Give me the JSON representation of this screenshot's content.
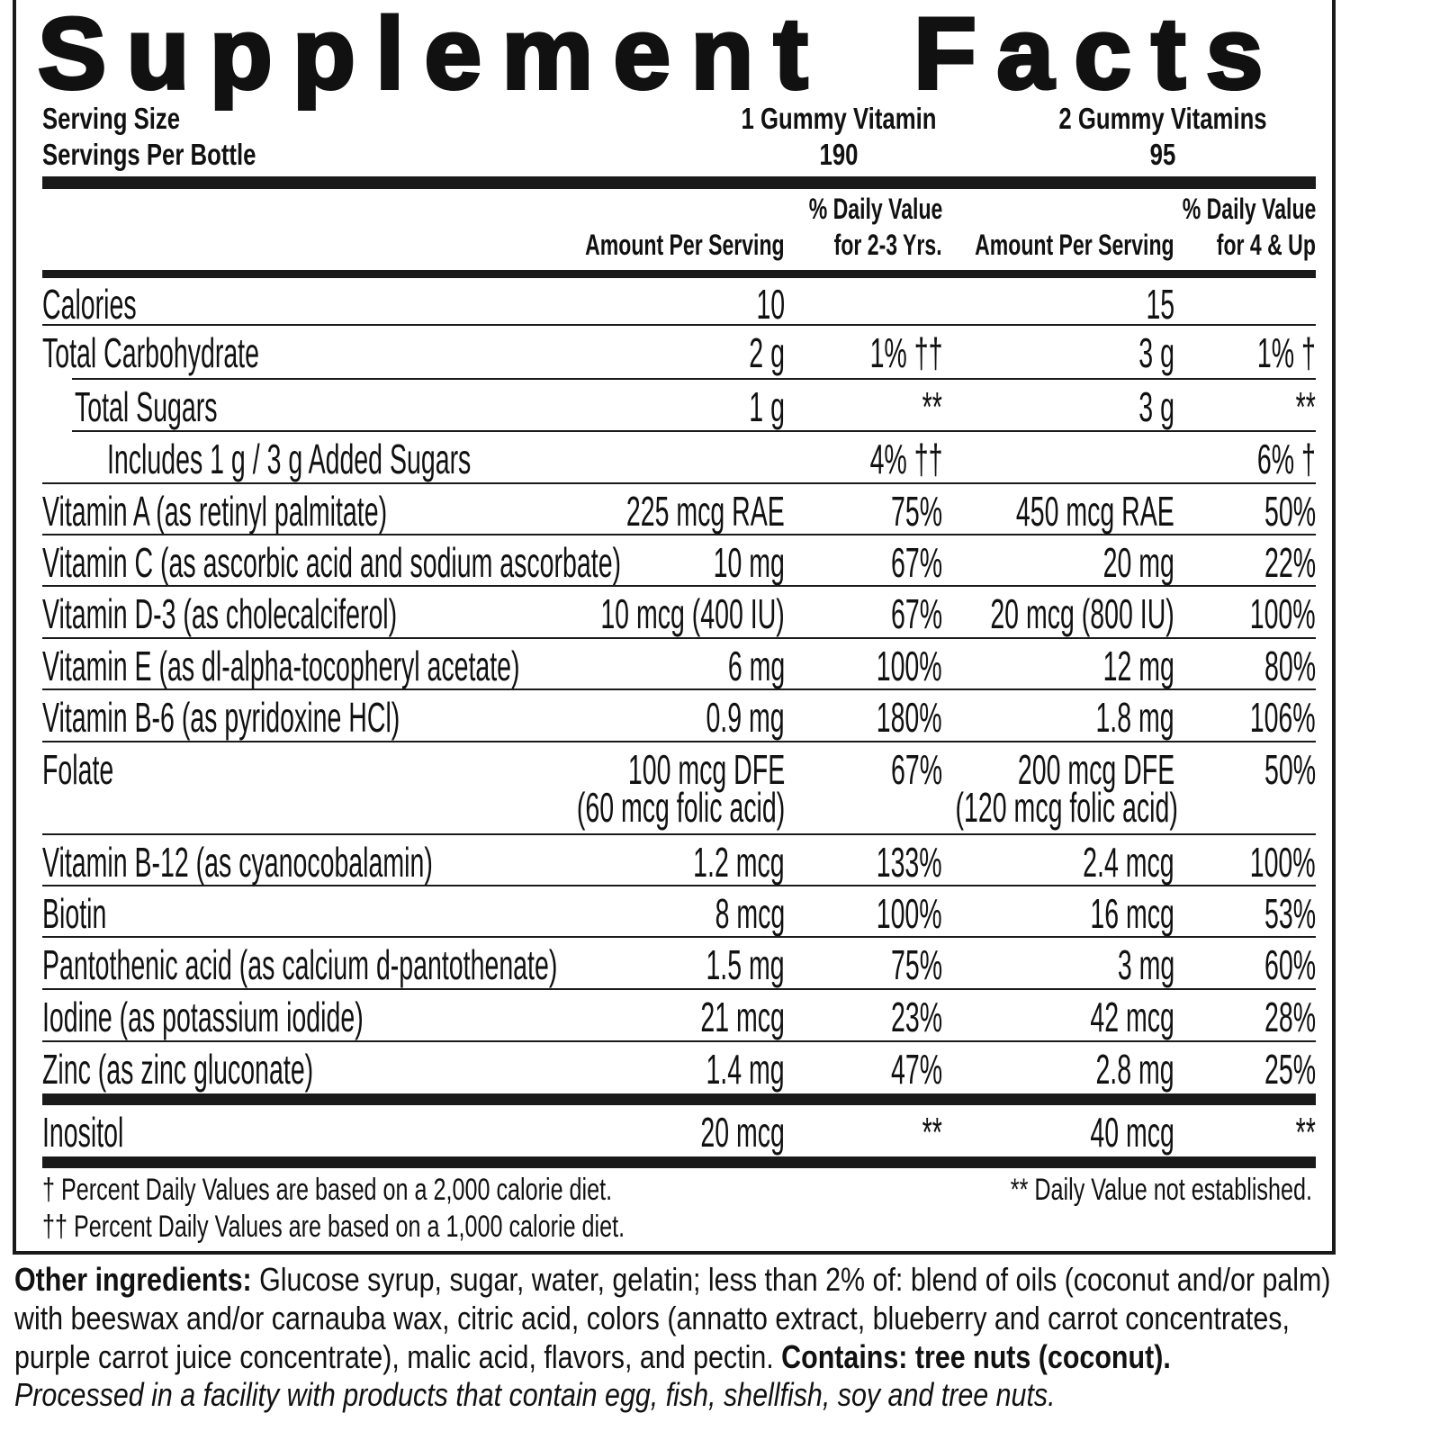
{
  "title": "Supplement Facts",
  "serving": {
    "serving_size_label": "Serving Size",
    "servings_per_label": "Servings Per Bottle",
    "size_1": "1 Gummy Vitamin",
    "size_2": "2 Gummy Vitamins",
    "servings_1": "190",
    "servings_2": "95"
  },
  "columns": {
    "amount_1": "Amount Per Serving",
    "dv_1_line1": "% Daily Value",
    "dv_1_line2": "for 2-3 Yrs.",
    "amount_2": "Amount Per Serving",
    "dv_2_line1": "% Daily Value",
    "dv_2_line2": "for 4 & Up"
  },
  "rows": [
    {
      "label": "Calories",
      "indent": 0,
      "amt1": "10",
      "dv1": "",
      "amt2": "15",
      "dv2": ""
    },
    {
      "label": "Total Carbohydrate",
      "indent": 0,
      "amt1": "2 g",
      "dv1": "1% ††",
      "amt2": "3 g",
      "dv2": "1% †"
    },
    {
      "label": "Total Sugars",
      "indent": 1,
      "amt1": "1 g",
      "dv1": "**",
      "amt2": "3 g",
      "dv2": "**"
    },
    {
      "label": "Includes 1 g / 3 g Added Sugars",
      "indent": 2,
      "amt1": "",
      "dv1": "4% ††",
      "amt2": "",
      "dv2": "6% †"
    },
    {
      "label": "Vitamin A (as retinyl palmitate)",
      "indent": 0,
      "amt1": "225 mcg RAE",
      "dv1": "75%",
      "amt2": "450 mcg RAE",
      "dv2": "50%"
    },
    {
      "label": "Vitamin C (as ascorbic acid and sodium ascorbate)",
      "indent": 0,
      "amt1": "10 mg",
      "dv1": "67%",
      "amt2": "20 mg",
      "dv2": "22%"
    },
    {
      "label": "Vitamin D-3 (as cholecalciferol)",
      "indent": 0,
      "amt1": "10 mcg (400 IU)",
      "dv1": "67%",
      "amt2": "20 mcg (800 IU)",
      "dv2": "100%"
    },
    {
      "label": "Vitamin E (as dl-alpha-tocopheryl acetate)",
      "indent": 0,
      "amt1": "6 mg",
      "dv1": "100%",
      "amt2": "12 mg",
      "dv2": "80%"
    },
    {
      "label": "Vitamin B-6 (as pyridoxine HCl)",
      "indent": 0,
      "amt1": "0.9 mg",
      "dv1": "180%",
      "amt2": "1.8 mg",
      "dv2": "106%"
    },
    {
      "label": "Folate",
      "indent": 0,
      "amt1": "100 mcg DFE",
      "amt1_sub": "(60 mcg folic acid)",
      "dv1": "67%",
      "amt2": "200 mcg DFE",
      "amt2_sub": "(120 mcg folic acid)",
      "dv2": "50%"
    },
    {
      "label": "Vitamin B-12 (as cyanocobalamin)",
      "indent": 0,
      "amt1": "1.2 mcg",
      "dv1": "133%",
      "amt2": "2.4 mcg",
      "dv2": "100%"
    },
    {
      "label": "Biotin",
      "indent": 0,
      "amt1": "8 mcg",
      "dv1": "100%",
      "amt2": "16 mcg",
      "dv2": "53%"
    },
    {
      "label": "Pantothenic acid (as calcium d-pantothenate)",
      "indent": 0,
      "amt1": "1.5 mg",
      "dv1": "75%",
      "amt2": "3 mg",
      "dv2": "60%"
    },
    {
      "label": "Iodine (as potassium iodide)",
      "indent": 0,
      "amt1": "21 mcg",
      "dv1": "23%",
      "amt2": "42 mcg",
      "dv2": "28%"
    },
    {
      "label": "Zinc (as zinc gluconate)",
      "indent": 0,
      "amt1": "1.4 mg",
      "dv1": "47%",
      "amt2": "2.8 mg",
      "dv2": "25%"
    },
    {
      "label": "Inositol",
      "indent": 0,
      "amt1": "20 mcg",
      "dv1": "**",
      "amt2": "40 mcg",
      "dv2": "**"
    }
  ],
  "footnotes": {
    "dagger": "† Percent Daily Values are based on a 2,000 calorie diet.",
    "double_dagger": "†† Percent Daily Values are based on a 1,000 calorie diet.",
    "not_established": "** Daily Value not established."
  },
  "ingredients": {
    "label": "Other ingredients:",
    "line1": " Glucose syrup, sugar, water, gelatin; less than 2% of: blend of oils (coconut and/or palm)",
    "line2": "with beeswax and/or carnauba wax, citric acid, colors (annatto extract, blueberry and carrot concentrates,",
    "line3": "purple carrot juice concentrate), malic acid, flavors, and pectin. ",
    "contains": "Contains: tree nuts (coconut).",
    "facility": "Processed in a facility with products that contain egg, fish, shellfish, soy and tree nuts."
  }
}
